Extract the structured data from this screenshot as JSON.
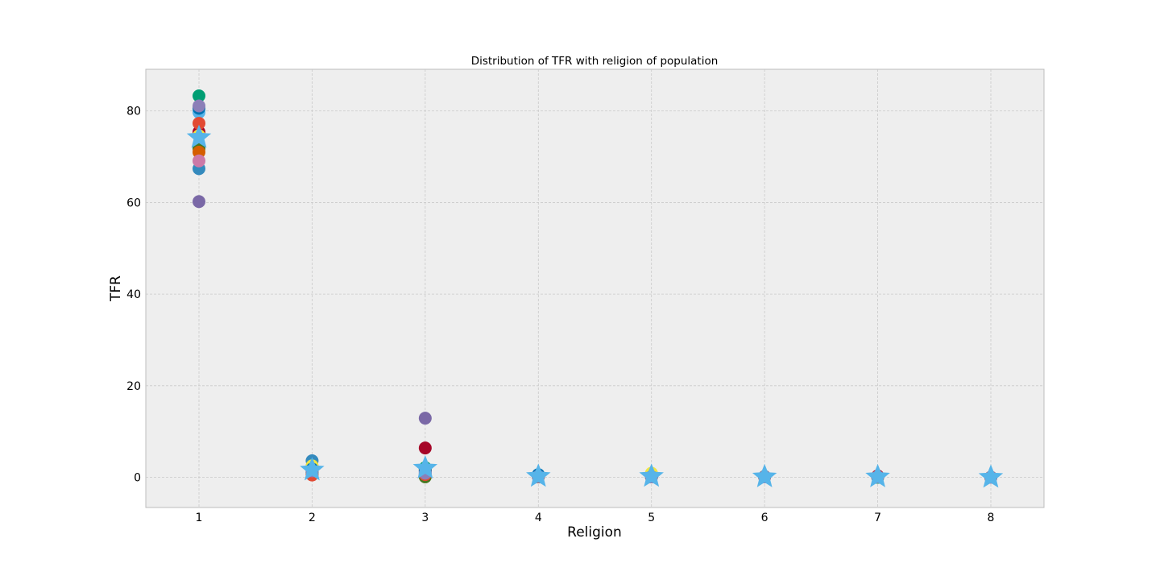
{
  "chart_data": {
    "type": "scatter",
    "title": "Distribution of TFR with religion of population",
    "xlabel": "Religion",
    "ylabel": "TFR",
    "xlim": [
      0.53,
      8.47
    ],
    "ylim": [
      -6.6,
      89.1
    ],
    "xticks": [
      1,
      2,
      3,
      4,
      5,
      6,
      7,
      8
    ],
    "yticks": [
      0,
      20,
      40,
      60,
      80
    ],
    "grid": true,
    "background": "#eeeeee",
    "series": [
      {
        "color": "#348ABD",
        "marker": "circle",
        "points": [
          [
            1,
            67.4
          ],
          [
            2,
            3.6
          ],
          [
            3,
            1.2
          ],
          [
            4,
            0.5
          ],
          [
            5,
            0.1
          ],
          [
            6,
            0.2
          ],
          [
            7,
            0.1
          ],
          [
            8,
            0.0
          ]
        ]
      },
      {
        "color": "#A60628",
        "marker": "circle",
        "points": [
          [
            1,
            75.4
          ],
          [
            2,
            1.1
          ],
          [
            3,
            6.4
          ],
          [
            4,
            0.2
          ],
          [
            5,
            0.1
          ],
          [
            6,
            0.1
          ],
          [
            7,
            0.3
          ],
          [
            8,
            0.0
          ]
        ]
      },
      {
        "color": "#7A68A6",
        "marker": "circle",
        "points": [
          [
            1,
            60.2
          ],
          [
            2,
            2.0
          ],
          [
            3,
            12.9
          ],
          [
            4,
            0.4
          ],
          [
            5,
            0.2
          ],
          [
            6,
            0.1
          ],
          [
            7,
            0.1
          ],
          [
            8,
            0.0
          ]
        ]
      },
      {
        "color": "#467821",
        "marker": "circle",
        "points": [
          [
            1,
            71.8
          ],
          [
            2,
            1.5
          ],
          [
            3,
            0.1
          ],
          [
            4,
            0.2
          ],
          [
            5,
            0.1
          ],
          [
            6,
            0.1
          ],
          [
            7,
            0.0
          ],
          [
            8,
            0.0
          ]
        ]
      },
      {
        "color": "#D55E00",
        "marker": "circle",
        "points": [
          [
            1,
            71.0
          ],
          [
            2,
            2.4
          ],
          [
            3,
            1.8
          ],
          [
            4,
            0.3
          ],
          [
            5,
            0.2
          ],
          [
            6,
            0.1
          ],
          [
            7,
            0.1
          ],
          [
            8,
            0.0
          ]
        ]
      },
      {
        "color": "#CC79A7",
        "marker": "circle",
        "points": [
          [
            1,
            69.1
          ],
          [
            2,
            0.6
          ],
          [
            3,
            1.4
          ],
          [
            4,
            0.1
          ],
          [
            5,
            0.1
          ],
          [
            6,
            0.1
          ],
          [
            7,
            0.1
          ],
          [
            8,
            0.0
          ]
        ]
      },
      {
        "color": "#56B4E9",
        "marker": "circle",
        "points": [
          [
            1,
            79.7
          ],
          [
            2,
            1.0
          ],
          [
            3,
            0.8
          ],
          [
            4,
            0.1
          ],
          [
            5,
            0.1
          ],
          [
            6,
            0.1
          ],
          [
            7,
            0.0
          ],
          [
            8,
            0.0
          ]
        ]
      },
      {
        "color": "#009E73",
        "marker": "circle",
        "points": [
          [
            1,
            83.3
          ],
          [
            2,
            1.2
          ],
          [
            3,
            2.1
          ],
          [
            4,
            0.1
          ],
          [
            5,
            0.1
          ],
          [
            6,
            0.1
          ],
          [
            7,
            0.0
          ],
          [
            8,
            0.0
          ]
        ]
      },
      {
        "color": "#F0E442",
        "marker": "circle",
        "points": [
          [
            1,
            74.6
          ],
          [
            2,
            2.5
          ],
          [
            3,
            1.7
          ],
          [
            4,
            0.2
          ],
          [
            5,
            0.9
          ],
          [
            6,
            0.1
          ],
          [
            7,
            0.1
          ],
          [
            8,
            0.0
          ]
        ]
      },
      {
        "color": "#0072B2",
        "marker": "circle",
        "points": [
          [
            1,
            80.6
          ],
          [
            2,
            1.8
          ],
          [
            3,
            1.5
          ],
          [
            4,
            0.6
          ],
          [
            5,
            0.1
          ],
          [
            6,
            0.1
          ],
          [
            7,
            0.1
          ],
          [
            8,
            0.0
          ]
        ]
      },
      {
        "color": "#E24A33",
        "marker": "circle",
        "points": [
          [
            1,
            77.3
          ],
          [
            2,
            0.5
          ],
          [
            3,
            0.6
          ],
          [
            4,
            0.1
          ],
          [
            5,
            0.1
          ],
          [
            6,
            0.1
          ],
          [
            7,
            0.1
          ],
          [
            8,
            0.0
          ]
        ]
      },
      {
        "color": "#8B7FB8",
        "marker": "circle",
        "points": [
          [
            1,
            81.1
          ],
          [
            2,
            1.4
          ],
          [
            3,
            0.9
          ],
          [
            4,
            0.2
          ],
          [
            5,
            0.1
          ],
          [
            6,
            0.1
          ],
          [
            7,
            0.1
          ],
          [
            8,
            0.0
          ]
        ]
      },
      {
        "color": "#56B4E9",
        "marker": "star",
        "points": [
          [
            1,
            74.2
          ],
          [
            2,
            1.6
          ],
          [
            3,
            2.0
          ],
          [
            4,
            0.2
          ],
          [
            5,
            0.2
          ],
          [
            6,
            0.1
          ],
          [
            7,
            0.1
          ],
          [
            8,
            0.0
          ]
        ]
      }
    ]
  }
}
